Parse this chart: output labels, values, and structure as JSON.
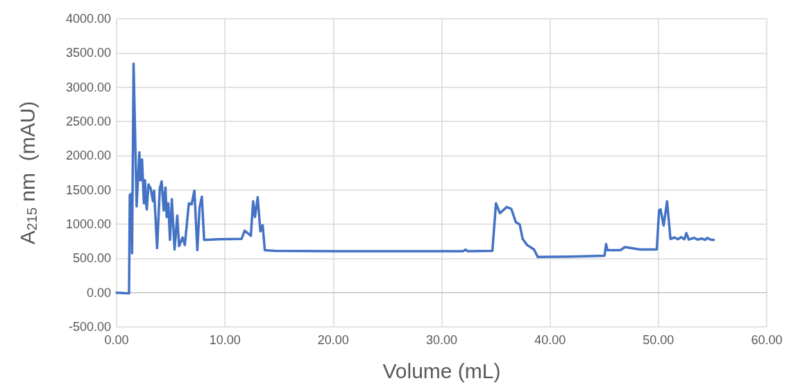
{
  "chart_data": {
    "type": "line",
    "xlabel": "Volume (mL)",
    "ylabel": "A$_{215}$ nm  (mAU)",
    "xlim": [
      0,
      60
    ],
    "xticks": [
      {
        "value": 0,
        "label": "0.00"
      },
      {
        "value": 10,
        "label": "10.00"
      },
      {
        "value": 20,
        "label": "20.00"
      },
      {
        "value": 30,
        "label": "30.00"
      },
      {
        "value": 40,
        "label": "40.00"
      },
      {
        "value": 50,
        "label": "50.00"
      },
      {
        "value": 60,
        "label": "60.00"
      }
    ],
    "ylim": [
      -500,
      4000
    ],
    "yticks": [
      {
        "value": -500,
        "label": "-500.00"
      },
      {
        "value": 0,
        "label": "0.00"
      },
      {
        "value": 500,
        "label": "500.00"
      },
      {
        "value": 1000,
        "label": "1000.00"
      },
      {
        "value": 1500,
        "label": "1500.00"
      },
      {
        "value": 2000,
        "label": "2000.00"
      },
      {
        "value": 2500,
        "label": "2500.00"
      },
      {
        "value": 3000,
        "label": "3000.00"
      },
      {
        "value": 3500,
        "label": "3500.00"
      },
      {
        "value": 4000,
        "label": "4000.00"
      }
    ],
    "grid": true,
    "marker": "none",
    "line_style": "solid",
    "series": [
      {
        "color": "#4472c4",
        "x": [
          0,
          1.15,
          1.22,
          1.37,
          1.43,
          1.57,
          1.85,
          2.1,
          2.2,
          2.35,
          2.52,
          2.62,
          2.72,
          2.79,
          2.94,
          3.15,
          3.36,
          3.46,
          3.74,
          3.99,
          4.16,
          4.35,
          4.51,
          4.62,
          4.77,
          4.93,
          5.1,
          5.35,
          5.6,
          5.77,
          6.09,
          6.3,
          6.67,
          6.93,
          7.18,
          7.45,
          7.66,
          7.87,
          8.08,
          9.45,
          11.54,
          11.82,
          12.39,
          12.6,
          12.77,
          13.02,
          13.27,
          13.48,
          13.68,
          14.6,
          20,
          25,
          32,
          32.2,
          32.4,
          34.68,
          35.01,
          35.37,
          36.0,
          36.42,
          36.84,
          37.2,
          37.47,
          37.89,
          38.52,
          38.87,
          42,
          45.03,
          45.17,
          45.3,
          46.5,
          46.91,
          48.28,
          49.85,
          50.06,
          50.2,
          50.48,
          50.8,
          51.11,
          51.5,
          51.8,
          52.1,
          52.4,
          52.58,
          52.8,
          53.3,
          53.6,
          54,
          54.3,
          54.5,
          54.8,
          55.1
        ],
        "values": [
          0,
          -10,
          1425,
          1445,
          575,
          3345,
          1260,
          2050,
          1640,
          1945,
          1305,
          1640,
          1305,
          1215,
          1580,
          1520,
          1335,
          1490,
          650,
          1520,
          1625,
          1200,
          1535,
          1105,
          1305,
          770,
          1365,
          630,
          1125,
          680,
          805,
          695,
          1305,
          1290,
          1490,
          620,
          1245,
          1400,
          770,
          780,
          785,
          905,
          830,
          1335,
          1105,
          1395,
          895,
          985,
          620,
          610,
          605,
          605,
          605,
          630,
          605,
          610,
          1305,
          1160,
          1250,
          1225,
          1030,
          995,
          785,
          695,
          630,
          520,
          525,
          540,
          710,
          620,
          620,
          665,
          630,
          630,
          1200,
          1215,
          980,
          1335,
          785,
          805,
          780,
          810,
          780,
          870,
          775,
          800,
          775,
          790,
          770,
          800,
          775,
          770
        ]
      }
    ]
  }
}
